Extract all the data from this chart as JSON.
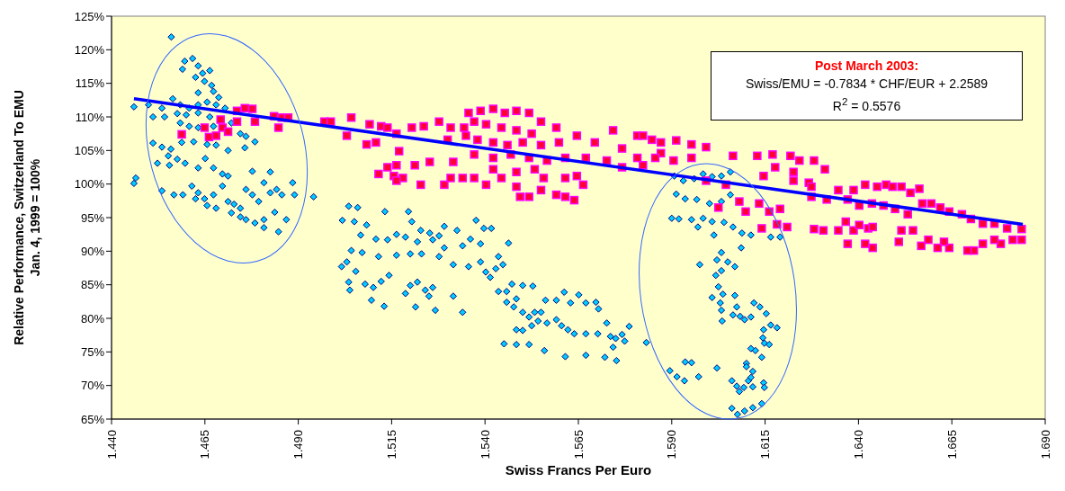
{
  "chart_data": {
    "type": "scatter",
    "xlabel": "Swiss Francs Per Euro",
    "ylabel": "Relative Performance, Switzerland To EMU\nJan. 4, 1999 = 100%",
    "xlim": [
      1.44,
      1.69
    ],
    "xticks": [
      {
        "value": 1.44,
        "label": "1.440"
      },
      {
        "value": 1.465,
        "label": "1.465"
      },
      {
        "value": 1.49,
        "label": "1.490"
      },
      {
        "value": 1.515,
        "label": "1.515"
      },
      {
        "value": 1.54,
        "label": "1.540"
      },
      {
        "value": 1.565,
        "label": "1.565"
      },
      {
        "value": 1.59,
        "label": "1.590"
      },
      {
        "value": 1.615,
        "label": "1.615"
      },
      {
        "value": 1.64,
        "label": "1.640"
      },
      {
        "value": 1.665,
        "label": "1.665"
      },
      {
        "value": 1.69,
        "label": "1.690"
      }
    ],
    "ylim": [
      65,
      125
    ],
    "yticks": [
      {
        "value": 65,
        "label": "65%"
      },
      {
        "value": 70,
        "label": "70%"
      },
      {
        "value": 75,
        "label": "75%"
      },
      {
        "value": 80,
        "label": "80%"
      },
      {
        "value": 85,
        "label": "85%"
      },
      {
        "value": 90,
        "label": "90%"
      },
      {
        "value": 95,
        "label": "95%"
      },
      {
        "value": 100,
        "label": "100%"
      },
      {
        "value": 105,
        "label": "105%"
      },
      {
        "value": 110,
        "label": "110%"
      },
      {
        "value": 115,
        "label": "115%"
      },
      {
        "value": 120,
        "label": "120%"
      },
      {
        "value": 125,
        "label": "125%"
      }
    ],
    "annotations": [
      "Post March 2003:",
      "Swiss/EMU = -0.7834 * CHF/EUR + 2.2589",
      "R$^{2}$ = 0.5576"
    ],
    "series": [
      {
        "type": "scatter",
        "marker": "diamond",
        "color": "#00ccff",
        "x": [
          1.446,
          1.446,
          1.456,
          1.4596,
          1.4617,
          1.459,
          1.4632,
          1.4644,
          1.4663,
          1.4625,
          1.4649,
          1.4668,
          1.4632,
          1.4673,
          1.4687,
          1.4564,
          1.4499,
          1.4535,
          1.4584,
          1.4608,
          1.4632,
          1.4656,
          1.468,
          1.4704,
          1.4576,
          1.46,
          1.4632,
          1.4663,
          1.4721,
          1.4511,
          1.4542,
          1.4584,
          1.4608,
          1.4632,
          1.4673,
          1.4745,
          1.476,
          1.4784,
          1.4511,
          1.4535,
          1.4559,
          1.4552,
          1.4576,
          1.4588,
          1.462,
          1.4656,
          1.468,
          1.4712,
          1.4757,
          1.4523,
          1.4555,
          1.4597,
          1.4632,
          1.4651,
          1.4673,
          1.4697,
          1.4712,
          1.4777,
          1.4825,
          1.4465,
          1.4535,
          1.4567,
          1.4591,
          1.4615,
          1.4632,
          1.4649,
          1.4673,
          1.4697,
          1.4712,
          1.4728,
          1.4745,
          1.476,
          1.4777,
          1.4794,
          1.4808,
          1.4825,
          1.4842,
          1.4856,
          1.4885,
          1.489,
          1.4941,
          1.468,
          1.4721,
          1.4745,
          1.476,
          1.4784,
          1.4808,
          1.4837,
          1.4868,
          1.4808,
          1.4847,
          1.4656,
          1.4625,
          1.5035,
          1.5059,
          1.5018,
          1.505,
          1.5083,
          1.5132,
          1.5195,
          1.5204,
          1.5228,
          1.5252,
          1.5277,
          1.5291,
          1.5325,
          1.5376,
          1.5397,
          1.5417,
          1.5067,
          1.5108,
          1.5139,
          1.5163,
          1.5187,
          1.5219,
          1.526,
          1.5291,
          1.534,
          1.5361,
          1.5388,
          1.5463,
          1.5042,
          1.5071,
          1.5115,
          1.5163,
          1.52,
          1.523,
          1.5277,
          1.5315,
          1.5356,
          1.5388,
          1.5436,
          1.5448,
          1.5016,
          1.503,
          1.5054,
          1.5122,
          1.5143,
          1.5035,
          1.5038,
          1.5079,
          1.5101,
          1.5187,
          1.52,
          1.5219,
          1.524,
          1.526,
          1.525,
          1.5096,
          1.513,
          1.5214,
          1.5267,
          1.5315,
          1.534,
          1.5402,
          1.5429,
          1.5414,
          1.5436,
          1.5458,
          1.5472,
          1.5501,
          1.5528,
          1.5484,
          1.5458,
          1.5477,
          1.5501,
          1.5518,
          1.5533,
          1.555,
          1.5562,
          1.5591,
          1.5612,
          1.5651,
          1.5629,
          1.567,
          1.5697,
          1.5704,
          1.5484,
          1.5501,
          1.5525,
          1.5542,
          1.5566,
          1.5591,
          1.5605,
          1.5622,
          1.5639,
          1.567,
          1.5702,
          1.5726,
          1.5736,
          1.575,
          1.5767,
          1.5774,
          1.5786,
          1.5743,
          1.5451,
          1.5484,
          1.5518,
          1.5559,
          1.5615,
          1.567,
          1.5721,
          1.5752,
          1.5832,
          1.5907,
          1.5931,
          1.596,
          1.5984,
          1.6008,
          1.6033,
          1.6057,
          1.5912,
          1.5936,
          1.5967,
          1.6001,
          1.6033,
          1.6057,
          1.59,
          1.5919,
          1.5953,
          1.5984,
          1.6008,
          1.604,
          1.6064,
          1.6088,
          1.6112,
          1.6165,
          1.619,
          1.597,
          1.6013,
          1.6086,
          1.6033,
          1.6021,
          1.605,
          1.5975,
          1.6033,
          1.6069,
          1.6018,
          1.6025,
          1.6037,
          1.6008,
          1.6069,
          1.603,
          1.6074,
          1.612,
          1.6136,
          1.6033,
          1.6064,
          1.6083,
          1.6095,
          1.6112,
          1.6035,
          1.6153,
          1.6165,
          1.6182,
          1.6146,
          1.6144,
          1.6148,
          1.6161,
          1.6112,
          1.6124,
          1.6141,
          1.5936,
          1.5953,
          1.5895,
          1.5914,
          1.5934,
          1.5972,
          1.6021,
          1.61,
          1.61,
          1.6117,
          1.6105,
          1.6112,
          1.6061,
          1.6074,
          1.6093,
          1.6117,
          1.6146,
          1.6148,
          1.6081,
          1.6076,
          1.6095,
          1.6117,
          1.6141,
          1.6061
        ],
        "values": [
          111.5,
          100.1,
          121.9,
          118.3,
          118.7,
          117.1,
          117.6,
          116.5,
          116.9,
          115.9,
          115.3,
          114.7,
          113.6,
          113.8,
          112.9,
          112.7,
          111.8,
          111.3,
          111.8,
          111.3,
          111.8,
          112.2,
          111.8,
          111.3,
          110.5,
          110.3,
          110.6,
          110,
          109.1,
          110,
          110,
          109.1,
          108.6,
          108.4,
          108.6,
          107.5,
          107.1,
          106.3,
          106.1,
          105.5,
          105.2,
          104.2,
          103.7,
          106.2,
          106.3,
          105.9,
          105.8,
          105,
          105.4,
          103.1,
          102.8,
          103.1,
          102.4,
          103.8,
          102.4,
          101.5,
          101.2,
          101.9,
          101.8,
          100.9,
          99,
          98.4,
          98.4,
          99.7,
          98.7,
          97.8,
          98.4,
          99.7,
          97.4,
          97,
          96.4,
          99.2,
          98.4,
          97.4,
          100.2,
          98.7,
          99.2,
          98.4,
          100.2,
          98.4,
          98.1,
          96.4,
          95.7,
          95.1,
          94.7,
          94.2,
          94.7,
          95.8,
          94.7,
          93.5,
          92.9,
          96.8,
          97.8,
          96.7,
          96.5,
          94.6,
          94.4,
          93.9,
          95.9,
          95.9,
          94.4,
          93.1,
          92.7,
          92.3,
          93.7,
          93.1,
          94.6,
          93.4,
          93.4,
          92.4,
          91.8,
          91.7,
          92.5,
          92.1,
          91.4,
          91.7,
          90.5,
          90.8,
          91.8,
          91.1,
          91.2,
          90.1,
          89.8,
          89.2,
          89.4,
          89.6,
          89.6,
          89.2,
          88,
          87.7,
          88.4,
          89.2,
          88,
          87.7,
          88.4,
          87,
          85.5,
          86.4,
          85.4,
          84.2,
          85.1,
          84.6,
          83.7,
          84.9,
          85.4,
          84.2,
          84.6,
          83.3,
          82.7,
          81.8,
          81.7,
          81.2,
          83.3,
          80.9,
          86.9,
          87.4,
          86.1,
          84,
          84,
          85.1,
          84.9,
          84.8,
          82.9,
          82.4,
          81.7,
          80.9,
          80.2,
          80.9,
          80.9,
          82.7,
          82.7,
          83.9,
          83.5,
          82.3,
          82.3,
          82.4,
          81.4,
          78.3,
          78.2,
          78.9,
          79.6,
          79.3,
          79.8,
          78.9,
          78.3,
          77.7,
          77.7,
          77.7,
          79.3,
          77.3,
          77,
          77.6,
          76.6,
          78.8,
          75.7,
          76.2,
          76.1,
          76.1,
          75.2,
          74.3,
          74.5,
          74.2,
          73.7,
          76.4,
          101.2,
          100.5,
          100.8,
          101.5,
          101.1,
          101.2,
          101.8,
          98.5,
          97.8,
          97.7,
          97.1,
          97.4,
          98.4,
          94.9,
          94.8,
          94.7,
          94.9,
          94.4,
          94.3,
          93.6,
          92.7,
          92.4,
          92.1,
          92.1,
          93.6,
          92.4,
          90.5,
          89.8,
          88.7,
          88.4,
          88,
          87.1,
          87.7,
          86.4,
          84.7,
          83.6,
          83.1,
          83.4,
          82.3,
          81.7,
          82.3,
          81.7,
          81.2,
          80.5,
          80.3,
          79.8,
          80.2,
          79.6,
          80.7,
          79,
          78.6,
          78.3,
          77.1,
          76.3,
          76.1,
          75.5,
          75.2,
          74.2,
          73.5,
          73.4,
          72.2,
          71.3,
          70.7,
          71.3,
          72.6,
          73.3,
          72.8,
          72.1,
          70.7,
          71.2,
          70.7,
          69.9,
          69.7,
          69.8,
          70.4,
          69.7,
          69.1,
          65.7,
          66.2,
          66.7,
          67.3,
          66.6
        ]
      },
      {
        "type": "scatter",
        "marker": "square",
        "color": "#ff0033",
        "x": [
          1.4588,
          1.4649,
          1.4661,
          1.468,
          1.4692,
          1.4697,
          1.4712,
          1.4736,
          1.4736,
          1.4757,
          1.4777,
          1.4784,
          1.4835,
          1.4847,
          1.4856,
          1.4873,
          1.497,
          1.4987,
          1.5042,
          1.503,
          1.5091,
          1.5122,
          1.5083,
          1.5108,
          1.5139,
          1.5163,
          1.517,
          1.5204,
          1.5236,
          1.5277,
          1.5308,
          1.53,
          1.5344,
          1.5356,
          1.5388,
          1.5422,
          1.5453,
          1.5484,
          1.5518,
          1.555,
          1.5591,
          1.5371,
          1.5403,
          1.5444,
          1.5484,
          1.5525,
          1.5349,
          1.538,
          1.5422,
          1.546,
          1.5501,
          1.555,
          1.5598,
          1.5646,
          1.5743,
          1.5694,
          1.5767,
          1.5808,
          1.5847,
          1.5871,
          1.5371,
          1.5422,
          1.5469,
          1.5518,
          1.5566,
          1.5615,
          1.567,
          1.5726,
          1.5767,
          1.5823,
          1.5315,
          1.5252,
          1.5212,
          1.5163,
          1.5139,
          1.5115,
          1.5156,
          1.518,
          1.5163,
          1.5228,
          1.5291,
          1.534,
          1.5308,
          1.5371,
          1.5403,
          1.5444,
          1.5484,
          1.5518,
          1.5494,
          1.555,
          1.5591,
          1.5615,
          1.5639,
          1.5557,
          1.5615,
          1.5663,
          1.5646,
          1.5422,
          1.5484,
          1.5533,
          1.5823,
          1.5871,
          1.5912,
          1.5953,
          1.5992,
          1.5808,
          1.5856,
          1.5905,
          1.5953,
          1.6064,
          1.6129,
          1.617,
          1.6218,
          1.6242,
          1.6281,
          1.631,
          1.6177,
          1.6226,
          1.6226,
          1.6267,
          1.6274,
          1.6146,
          1.5992,
          1.6045,
          1.6025,
          1.6081,
          1.6098,
          1.6134,
          1.6161,
          1.619,
          1.6141,
          1.6182,
          1.6209,
          1.6281,
          1.6306,
          1.6274,
          1.6315,
          1.6346,
          1.6387,
          1.6418,
          1.645,
          1.6474,
          1.6491,
          1.6515,
          1.6539,
          1.6563,
          1.6371,
          1.6402,
          1.6436,
          1.6467,
          1.6498,
          1.6532,
          1.6571,
          1.6595,
          1.6619,
          1.6643,
          1.6677,
          1.6701,
          1.6733,
          1.6764,
          1.6798,
          1.6837,
          1.6837,
          1.6813,
          1.6781,
          1.6764,
          1.6733,
          1.6709,
          1.6692,
          1.6643,
          1.6629,
          1.6612,
          1.6587,
          1.6568,
          1.6546,
          1.6515,
          1.6508,
          1.6438,
          1.6418,
          1.6371,
          1.6387,
          1.6426,
          1.6346,
          1.6366,
          1.6402,
          1.6438
        ],
        "values": [
          107.4,
          108.4,
          107,
          107.2,
          109.6,
          108.4,
          107.8,
          109.3,
          110.9,
          111.3,
          111.2,
          109.3,
          110.1,
          108.4,
          109.9,
          109.9,
          109.3,
          109.3,
          109.9,
          107.2,
          108.9,
          108.6,
          105.9,
          106.2,
          108.4,
          107.5,
          104.9,
          108.4,
          108.6,
          109.3,
          108.4,
          106.6,
          108.4,
          110.6,
          110.9,
          111.2,
          110.6,
          110.9,
          110.6,
          109.3,
          108.4,
          109.3,
          108.9,
          108.4,
          108,
          107.5,
          107.2,
          106.6,
          106.2,
          105.8,
          106.2,
          105.8,
          106.2,
          107.2,
          108,
          106.2,
          105.3,
          107.2,
          106.6,
          104.6,
          104.4,
          103.9,
          104.4,
          103.9,
          103.5,
          103.9,
          103.9,
          103.5,
          102.5,
          102.8,
          103.3,
          103.3,
          102.8,
          102.8,
          102.5,
          101.5,
          101.2,
          100.9,
          100.5,
          99.9,
          99.9,
          100.9,
          100.9,
          100.9,
          99.9,
          100.9,
          99.6,
          98.1,
          98.1,
          99.1,
          98.4,
          98.1,
          97.6,
          100.9,
          100.9,
          99.9,
          101.2,
          102.2,
          101.8,
          102.2,
          107.2,
          106.2,
          106.5,
          105.9,
          105.5,
          103.9,
          103.9,
          103.5,
          103.9,
          104.2,
          104.2,
          104.4,
          104.2,
          103.5,
          103.5,
          102.2,
          102.5,
          101.8,
          100.5,
          100.2,
          99.6,
          101.2,
          100.5,
          99.9,
          96.5,
          97.4,
          95.9,
          97.1,
          95.9,
          96.3,
          93.4,
          94,
          93.6,
          93.3,
          93.1,
          98.1,
          97.7,
          99.1,
          99.1,
          99.9,
          99.6,
          99.9,
          99.6,
          99.6,
          98.7,
          99.3,
          97.7,
          96.8,
          97.1,
          96.8,
          96.3,
          95.5,
          97.1,
          97.1,
          96.5,
          95.9,
          95.5,
          94.8,
          94.1,
          94.1,
          93.4,
          93.3,
          91.7,
          91.7,
          91.1,
          91.7,
          91.1,
          90.1,
          90.1,
          90.5,
          91.4,
          90.5,
          91.7,
          90.8,
          93.1,
          93.1,
          91.4,
          90.5,
          91.1,
          91.1,
          93.1,
          93.4,
          93.1,
          94.4,
          93.9,
          93.6
        ]
      },
      {
        "type": "line",
        "marker": "none",
        "line_style": "solid",
        "color": "#0000ff",
        "x": [
          1.446,
          1.684
        ],
        "values": [
          112.7,
          94.0
        ]
      }
    ]
  }
}
